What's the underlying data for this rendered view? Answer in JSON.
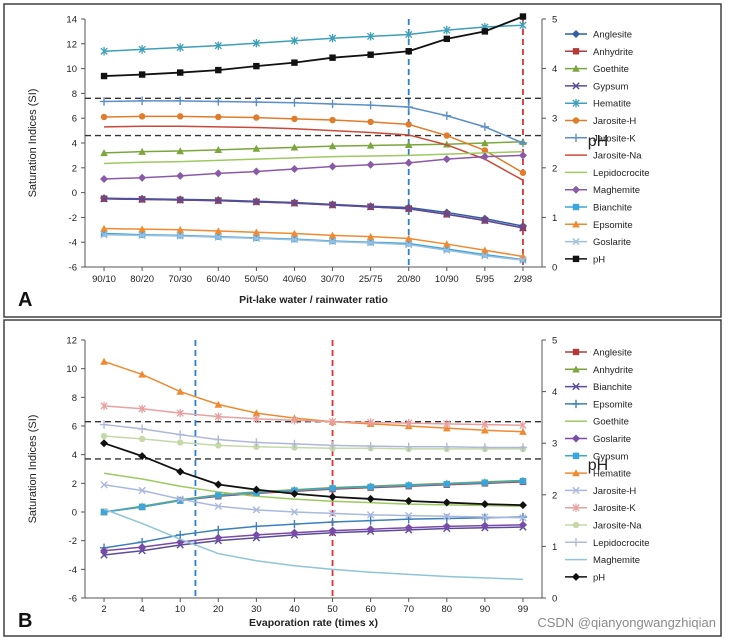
{
  "watermark": "CSDN @qianyongwangzhiqian",
  "chart_data": [
    {
      "type": "line",
      "panel_label": "A",
      "xlabel": "Pit-lake water /  rainwater ratio",
      "ylabel": "Saturation Indices (SI)",
      "y2label": "pH",
      "categories": [
        "90/10",
        "80/20",
        "70/30",
        "60/40",
        "50/50",
        "40/60",
        "30/70",
        "25/75",
        "20/80",
        "10/90",
        "5/95",
        "2/98"
      ],
      "ylim": [
        -6,
        14
      ],
      "yticks": [
        -6,
        -4,
        -2,
        0,
        2,
        4,
        6,
        8,
        10,
        12,
        14
      ],
      "y2lim": [
        0,
        5
      ],
      "y2ticks": [
        0,
        1,
        2,
        3,
        4,
        5
      ],
      "hlines": [
        7.6,
        4.6
      ],
      "vlines": [
        {
          "category": "20/80",
          "color": "#2a7fd0"
        },
        {
          "category": "2/98",
          "color": "#e03030"
        }
      ],
      "series": [
        {
          "name": "Anglesite",
          "color": "#2f5fa7",
          "marker": "diamond",
          "axis": "left",
          "values": [
            -0.45,
            -0.5,
            -0.55,
            -0.6,
            -0.7,
            -0.8,
            -0.95,
            -1.1,
            -1.2,
            -1.6,
            -2.1,
            -2.7
          ]
        },
        {
          "name": "Anhydrite",
          "color": "#b43a3a",
          "marker": "square",
          "axis": "left",
          "values": [
            -0.5,
            -0.55,
            -0.6,
            -0.65,
            -0.75,
            -0.85,
            -1.0,
            -1.15,
            -1.3,
            -1.75,
            -2.25,
            -2.85
          ]
        },
        {
          "name": "Goethite",
          "color": "#7aa63c",
          "marker": "triangle",
          "axis": "left",
          "values": [
            3.2,
            3.3,
            3.35,
            3.45,
            3.55,
            3.65,
            3.75,
            3.8,
            3.85,
            3.9,
            4.0,
            4.1
          ]
        },
        {
          "name": "Gypsum",
          "color": "#5b4b9a",
          "marker": "x",
          "axis": "left",
          "values": [
            -0.5,
            -0.55,
            -0.6,
            -0.65,
            -0.75,
            -0.85,
            -1.0,
            -1.15,
            -1.3,
            -1.75,
            -2.25,
            -2.85
          ]
        },
        {
          "name": "Hematite",
          "color": "#3d9fb8",
          "marker": "star",
          "axis": "left",
          "values": [
            11.4,
            11.55,
            11.7,
            11.85,
            12.05,
            12.25,
            12.45,
            12.6,
            12.75,
            13.1,
            13.35,
            13.5
          ]
        },
        {
          "name": "Jarosite-H",
          "color": "#e07c2a",
          "marker": "circle",
          "axis": "left",
          "values": [
            6.1,
            6.15,
            6.15,
            6.1,
            6.05,
            5.95,
            5.85,
            5.7,
            5.5,
            4.6,
            3.4,
            1.6
          ]
        },
        {
          "name": "Jarosite-K",
          "color": "#5b8fc7",
          "marker": "plus",
          "axis": "left",
          "values": [
            7.35,
            7.4,
            7.4,
            7.35,
            7.3,
            7.25,
            7.15,
            7.05,
            6.9,
            6.2,
            5.3,
            4.0
          ]
        },
        {
          "name": "Jarosite-Na",
          "color": "#c84a3a",
          "marker": "line",
          "axis": "left",
          "values": [
            5.3,
            5.35,
            5.35,
            5.3,
            5.25,
            5.15,
            5.0,
            4.85,
            4.65,
            3.85,
            2.7,
            1.0
          ]
        },
        {
          "name": "Lepidocrocite",
          "color": "#9ec860",
          "marker": "line",
          "axis": "left",
          "values": [
            2.35,
            2.45,
            2.5,
            2.6,
            2.7,
            2.8,
            2.9,
            2.95,
            3.0,
            3.1,
            3.2,
            3.3
          ]
        },
        {
          "name": "Maghemite",
          "color": "#8a5aa8",
          "marker": "diamond",
          "axis": "left",
          "values": [
            1.1,
            1.2,
            1.35,
            1.55,
            1.7,
            1.9,
            2.1,
            2.25,
            2.4,
            2.7,
            2.9,
            3.0
          ]
        },
        {
          "name": "Bianchite",
          "color": "#3ba6d9",
          "marker": "square",
          "axis": "left",
          "values": [
            -3.3,
            -3.4,
            -3.45,
            -3.55,
            -3.65,
            -3.75,
            -3.9,
            -4.0,
            -4.1,
            -4.55,
            -5.0,
            -5.4
          ]
        },
        {
          "name": "Epsomite",
          "color": "#f08a30",
          "marker": "triangle",
          "axis": "left",
          "values": [
            -2.9,
            -2.95,
            -3.0,
            -3.1,
            -3.2,
            -3.3,
            -3.45,
            -3.55,
            -3.7,
            -4.15,
            -4.65,
            -5.15
          ]
        },
        {
          "name": "Goslarite",
          "color": "#9fbfe0",
          "marker": "x",
          "axis": "left",
          "values": [
            -3.4,
            -3.45,
            -3.5,
            -3.6,
            -3.7,
            -3.8,
            -3.95,
            -4.05,
            -4.2,
            -4.65,
            -5.1,
            -5.45
          ]
        },
        {
          "name": "pH",
          "color": "#111111",
          "marker": "square",
          "axis": "right",
          "values": [
            3.85,
            3.88,
            3.92,
            3.97,
            4.05,
            4.12,
            4.22,
            4.28,
            4.35,
            4.6,
            4.75,
            5.05
          ]
        }
      ]
    },
    {
      "type": "line",
      "panel_label": "B",
      "xlabel": "Evaporation rate (times x)",
      "ylabel": "Saturation Indices (SI)",
      "y2label": "pH",
      "categories": [
        "2",
        "4",
        "10",
        "20",
        "30",
        "40",
        "50",
        "60",
        "70",
        "80",
        "90",
        "99"
      ],
      "ylim": [
        -6,
        12
      ],
      "yticks": [
        -6,
        -4,
        -2,
        0,
        2,
        4,
        6,
        8,
        10,
        12
      ],
      "y2lim": [
        0,
        5
      ],
      "y2ticks": [
        0,
        1,
        2,
        3,
        4,
        5
      ],
      "hlines": [
        6.3,
        3.7
      ],
      "vlines": [
        {
          "category": "10",
          "offset": 0.4,
          "color": "#2a7fd0"
        },
        {
          "category": "50",
          "color": "#e03030"
        }
      ],
      "series": [
        {
          "name": "Anglesite",
          "color": "#b43a3a",
          "marker": "square",
          "axis": "left",
          "values": [
            0.0,
            0.35,
            0.8,
            1.1,
            1.3,
            1.45,
            1.6,
            1.7,
            1.8,
            1.9,
            2.0,
            2.1
          ]
        },
        {
          "name": "Anhydrite",
          "color": "#7aa63c",
          "marker": "triangle",
          "axis": "left",
          "values": [
            0.0,
            0.4,
            0.85,
            1.2,
            1.4,
            1.55,
            1.7,
            1.8,
            1.9,
            2.0,
            2.1,
            2.2
          ]
        },
        {
          "name": "Bianchite",
          "color": "#5b4b9a",
          "marker": "x",
          "axis": "left",
          "values": [
            -3.0,
            -2.7,
            -2.3,
            -2.0,
            -1.8,
            -1.6,
            -1.45,
            -1.35,
            -1.25,
            -1.15,
            -1.1,
            -1.05
          ]
        },
        {
          "name": "Epsomite",
          "color": "#3d7fb8",
          "marker": "plus",
          "axis": "left",
          "values": [
            -2.5,
            -2.1,
            -1.6,
            -1.25,
            -1.0,
            -0.85,
            -0.7,
            -0.6,
            -0.5,
            -0.45,
            -0.4,
            -0.35
          ]
        },
        {
          "name": "Goethite",
          "color": "#9ec860",
          "marker": "line",
          "axis": "left",
          "values": [
            2.7,
            2.3,
            1.8,
            1.4,
            1.1,
            0.9,
            0.75,
            0.65,
            0.55,
            0.5,
            0.45,
            0.4
          ]
        },
        {
          "name": "Goslarite",
          "color": "#7a4aa8",
          "marker": "diamond",
          "axis": "left",
          "values": [
            -2.7,
            -2.45,
            -2.1,
            -1.8,
            -1.6,
            -1.45,
            -1.3,
            -1.2,
            -1.1,
            -1.0,
            -0.95,
            -0.9
          ]
        },
        {
          "name": "Gypsum",
          "color": "#3ba6d9",
          "marker": "square",
          "axis": "left",
          "values": [
            0.0,
            0.35,
            0.8,
            1.15,
            1.35,
            1.5,
            1.65,
            1.75,
            1.85,
            1.95,
            2.05,
            2.15
          ]
        },
        {
          "name": "Hematite",
          "color": "#f08a30",
          "marker": "triangle",
          "axis": "left",
          "values": [
            10.5,
            9.6,
            8.4,
            7.5,
            6.9,
            6.55,
            6.3,
            6.15,
            6.0,
            5.85,
            5.7,
            5.6
          ]
        },
        {
          "name": "Jarosite-H",
          "color": "#aab8e0",
          "marker": "x",
          "axis": "left",
          "values": [
            1.9,
            1.5,
            0.9,
            0.4,
            0.15,
            0.0,
            -0.1,
            -0.2,
            -0.25,
            -0.3,
            -0.35,
            -0.4
          ]
        },
        {
          "name": "Jarosite-K",
          "color": "#e8a0a0",
          "marker": "star",
          "axis": "left",
          "values": [
            7.4,
            7.2,
            6.9,
            6.65,
            6.5,
            6.4,
            6.3,
            6.25,
            6.2,
            6.15,
            6.1,
            6.05
          ]
        },
        {
          "name": "Jarosite-Na",
          "color": "#c4d8a8",
          "marker": "circle",
          "axis": "left",
          "values": [
            5.3,
            5.1,
            4.85,
            4.65,
            4.55,
            4.5,
            4.45,
            4.45,
            4.4,
            4.4,
            4.4,
            4.4
          ]
        },
        {
          "name": "Lepidocrocite",
          "color": "#b0b8d8",
          "marker": "plus",
          "axis": "left",
          "values": [
            6.1,
            5.8,
            5.4,
            5.05,
            4.85,
            4.75,
            4.65,
            4.6,
            4.55,
            4.55,
            4.5,
            4.5
          ]
        },
        {
          "name": "Maghemite",
          "color": "#8ec4d8",
          "marker": "line",
          "axis": "left",
          "values": [
            0.2,
            -0.8,
            -1.9,
            -2.9,
            -3.4,
            -3.75,
            -4.0,
            -4.2,
            -4.35,
            -4.5,
            -4.6,
            -4.7
          ]
        },
        {
          "name": "pH",
          "color": "#111111",
          "marker": "diamond",
          "axis": "right",
          "values": [
            3.0,
            2.75,
            2.45,
            2.2,
            2.1,
            2.02,
            1.96,
            1.92,
            1.88,
            1.85,
            1.82,
            1.8
          ]
        }
      ]
    }
  ]
}
